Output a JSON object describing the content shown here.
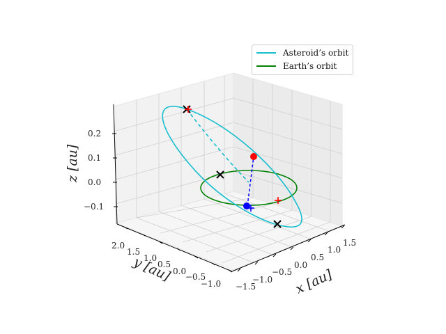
{
  "chart_data": {
    "type": "line",
    "projection": "3d",
    "xlabel": "x [au]",
    "ylabel": "y [au]",
    "zlabel": "z [au]",
    "xlim": [
      -1.6,
      1.6
    ],
    "ylim": [
      -1.2,
      2.2
    ],
    "zlim": [
      -0.18,
      0.3
    ],
    "x_ticks": [
      "−1.5",
      "−1.0",
      "−0.5",
      "0.0",
      "0.5",
      "1.0",
      "1.5"
    ],
    "y_ticks": [
      "−1.0",
      "−0.5",
      "0.0",
      "0.5",
      "1.0",
      "1.5",
      "2.0"
    ],
    "z_ticks": [
      "−0.1",
      "0.0",
      "0.1",
      "0.2"
    ],
    "grid": true,
    "legend_position": "top-right",
    "series": [
      {
        "name": "Asteroid’s orbit",
        "color": "#17becf",
        "kind": "ellipse",
        "center": [
          0.0,
          0.6,
          0.05
        ],
        "semi_axis_a": [
          0.5,
          -1.45,
          -0.27
        ],
        "semi_axis_b": [
          0.55,
          0.35,
          0.02
        ],
        "below_plane": "dashed"
      },
      {
        "name": "Earth’s orbit",
        "color": "#008000",
        "kind": "ellipse",
        "center": [
          0.0,
          0.0,
          0.0
        ],
        "semi_axis_a": [
          1.0,
          0.0,
          0.0
        ],
        "semi_axis_b": [
          0.0,
          1.0,
          0.0
        ]
      }
    ],
    "markers": [
      {
        "label": "node-ascending",
        "symbol": "x",
        "color": "#000000",
        "pos": [
          -0.9,
          1.0,
          0.0
        ]
      },
      {
        "label": "node-descending",
        "symbol": "x",
        "color": "#000000",
        "pos": [
          0.9,
          -0.3,
          0.0
        ]
      },
      {
        "label": "perihelion",
        "symbol": "x",
        "color": "#000000",
        "pos": [
          -0.5,
          2.05,
          0.32
        ]
      },
      {
        "label": "aphelion",
        "symbol": "x",
        "color": "#000000",
        "pos": [
          1.1,
          -0.9,
          -0.1
        ]
      },
      {
        "label": "asteroid",
        "symbol": "dot",
        "color": "#ff0000",
        "pos": [
          0.45,
          0.7,
          0.12
        ]
      },
      {
        "label": "earth",
        "symbol": "dot",
        "color": "#0000ff",
        "pos": [
          0.2,
          -0.95,
          0.0
        ]
      },
      {
        "label": "asteroid-projection",
        "symbol": "+",
        "color": "#ff0000",
        "pos": [
          0.95,
          -0.1,
          0.0
        ]
      },
      {
        "label": "earth-projection",
        "symbol": "+",
        "color": "#0000ff",
        "pos": [
          0.25,
          -0.95,
          -0.05
        ]
      },
      {
        "label": "perihelion-projection",
        "symbol": "+",
        "color": "#ff0000",
        "pos": [
          -0.5,
          2.05,
          0.3
        ]
      }
    ],
    "connector": {
      "color": "#0000ff",
      "style": "dashed",
      "from": "earth",
      "to": "asteroid"
    }
  }
}
